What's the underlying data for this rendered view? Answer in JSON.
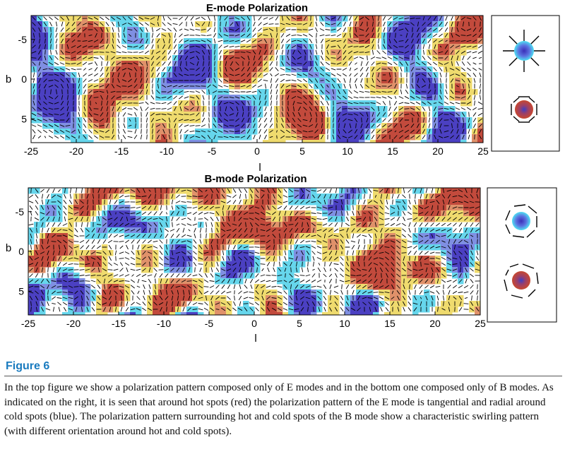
{
  "figure": {
    "panels": [
      {
        "id": "emode",
        "title": "E-mode Polarization",
        "xlabel": "l",
        "ylabel": "b",
        "xticks": [
          "-25",
          "-20",
          "-15",
          "-10",
          "-5",
          "0",
          "5",
          "10",
          "15",
          "20",
          "25"
        ],
        "yticks": [
          "-5",
          "0",
          "5"
        ],
        "xlim": [
          -25,
          25
        ],
        "ylim": [
          -8,
          8
        ]
      },
      {
        "id": "bmode",
        "title": "B-mode Polarization",
        "xlabel": "l",
        "ylabel": "b",
        "xticks": [
          "-25",
          "-20",
          "-15",
          "-10",
          "-5",
          "0",
          "5",
          "10",
          "15",
          "20",
          "25"
        ],
        "yticks": [
          "-5",
          "0",
          "5"
        ],
        "xlim": [
          -25,
          25
        ],
        "ylim": [
          -8,
          8
        ]
      }
    ],
    "colors": {
      "hot": "#c0392b",
      "cold": "#4a4ac8",
      "cyan": "#4fd8ee",
      "yellow": "#f2e063"
    }
  },
  "caption": {
    "label": "Figure 6",
    "text": "In the top figure we show a polarization pattern composed only of E modes and in the bottom one composed only of B modes. As indicated on the right, it is seen that around hot spots (red) the polarization pattern of the E mode is tangential and radial around cold spots (blue). The polarization pattern surrounding hot and cold spots of the B mode show a characteristic swirling pattern (with different orientation around hot and cold spots)."
  }
}
